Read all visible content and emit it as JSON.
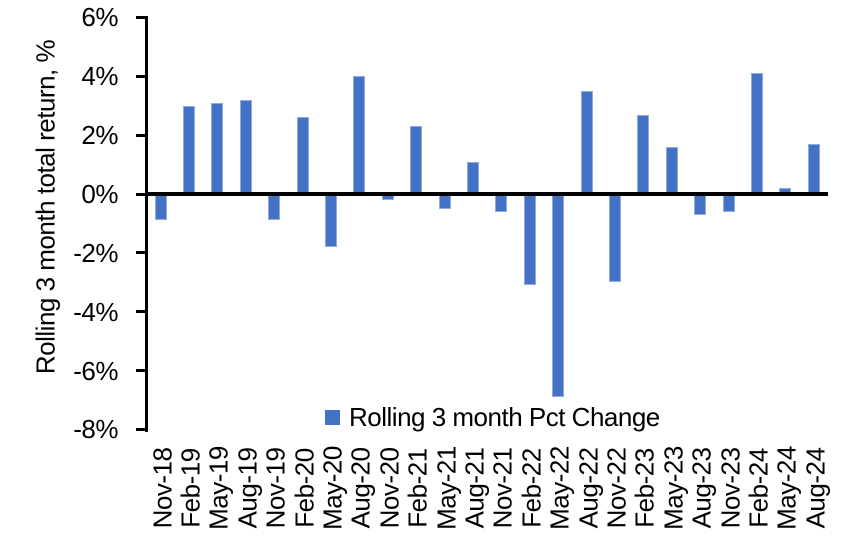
{
  "chart_data": {
    "type": "bar",
    "title": "",
    "xlabel": "",
    "ylabel": "Rolling 3 month total return, %",
    "categories": [
      "Nov-18",
      "Feb-19",
      "May-19",
      "Aug-19",
      "Nov-19",
      "Feb-20",
      "May-20",
      "Aug-20",
      "Nov-20",
      "Feb-21",
      "May-21",
      "Aug-21",
      "Nov-21",
      "Feb-22",
      "May-22",
      "Aug-22",
      "Nov-22",
      "Feb-23",
      "May-23",
      "Aug-23",
      "Nov-23",
      "Feb-24",
      "May-24",
      "Aug-24"
    ],
    "values": [
      -0.9,
      3.0,
      3.1,
      3.2,
      -0.9,
      2.6,
      -1.8,
      4.0,
      -0.2,
      2.3,
      -0.5,
      1.1,
      -0.6,
      -3.1,
      -6.9,
      3.5,
      -3.0,
      2.7,
      1.6,
      -0.7,
      -0.6,
      4.1,
      0.2,
      1.7
    ],
    "ylim": [
      -8,
      6
    ],
    "ytick_labels": [
      "6%",
      "4%",
      "2%",
      "0%",
      "-2%",
      "-4%",
      "-6%",
      "-8%"
    ],
    "ytick_values": [
      6,
      4,
      2,
      0,
      -2,
      -4,
      -6,
      -8
    ],
    "grid": false,
    "legend_position": "bottom-center",
    "legend": [
      {
        "label": "Rolling 3 month Pct Change",
        "color": "#4472C4"
      }
    ],
    "bar_color": "#4472C4",
    "axis_color": "#000000"
  }
}
